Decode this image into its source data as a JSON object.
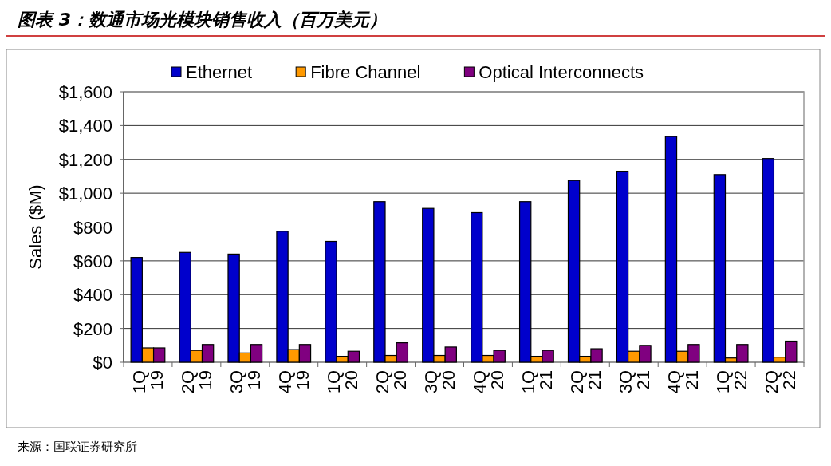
{
  "chart_data": {
    "type": "bar",
    "title": "图表 3：数通市场光模块销售收入（百万美元）",
    "ylabel": "Sales  ($M)",
    "categories": [
      "1Q 19",
      "2Q 19",
      "3Q 19",
      "4Q 19",
      "1Q 20",
      "2Q 20",
      "3Q 20",
      "4Q 20",
      "1Q 21",
      "2Q 21",
      "3Q 21",
      "4Q 21",
      "1Q 22",
      "2Q 22"
    ],
    "series": [
      {
        "name": "Ethernet",
        "color": "#0000cc",
        "values": [
          620,
          650,
          640,
          775,
          715,
          950,
          910,
          885,
          950,
          1075,
          1130,
          1335,
          1110,
          1205
        ]
      },
      {
        "name": "Fibre Channel",
        "color": "#ff9900",
        "values": [
          85,
          70,
          55,
          75,
          35,
          40,
          40,
          40,
          35,
          35,
          65,
          65,
          25,
          30
        ]
      },
      {
        "name": "Optical Interconnects",
        "color": "#800080",
        "values": [
          85,
          105,
          105,
          105,
          65,
          115,
          90,
          70,
          70,
          80,
          100,
          105,
          105,
          125
        ]
      }
    ],
    "ylim": [
      0,
      1600
    ],
    "yticks": [
      {
        "value": 0,
        "label": "$0"
      },
      {
        "value": 200,
        "label": "$200"
      },
      {
        "value": 400,
        "label": "$400"
      },
      {
        "value": 600,
        "label": "$600"
      },
      {
        "value": 800,
        "label": "$800"
      },
      {
        "value": 1000,
        "label": "$1,000"
      },
      {
        "value": 1200,
        "label": "$1,200"
      },
      {
        "value": 1400,
        "label": "$1,400"
      },
      {
        "value": 1600,
        "label": "$1,600"
      }
    ],
    "grid": "y",
    "legend": "top",
    "annotations": [
      "来源：国联证券研究所"
    ]
  }
}
